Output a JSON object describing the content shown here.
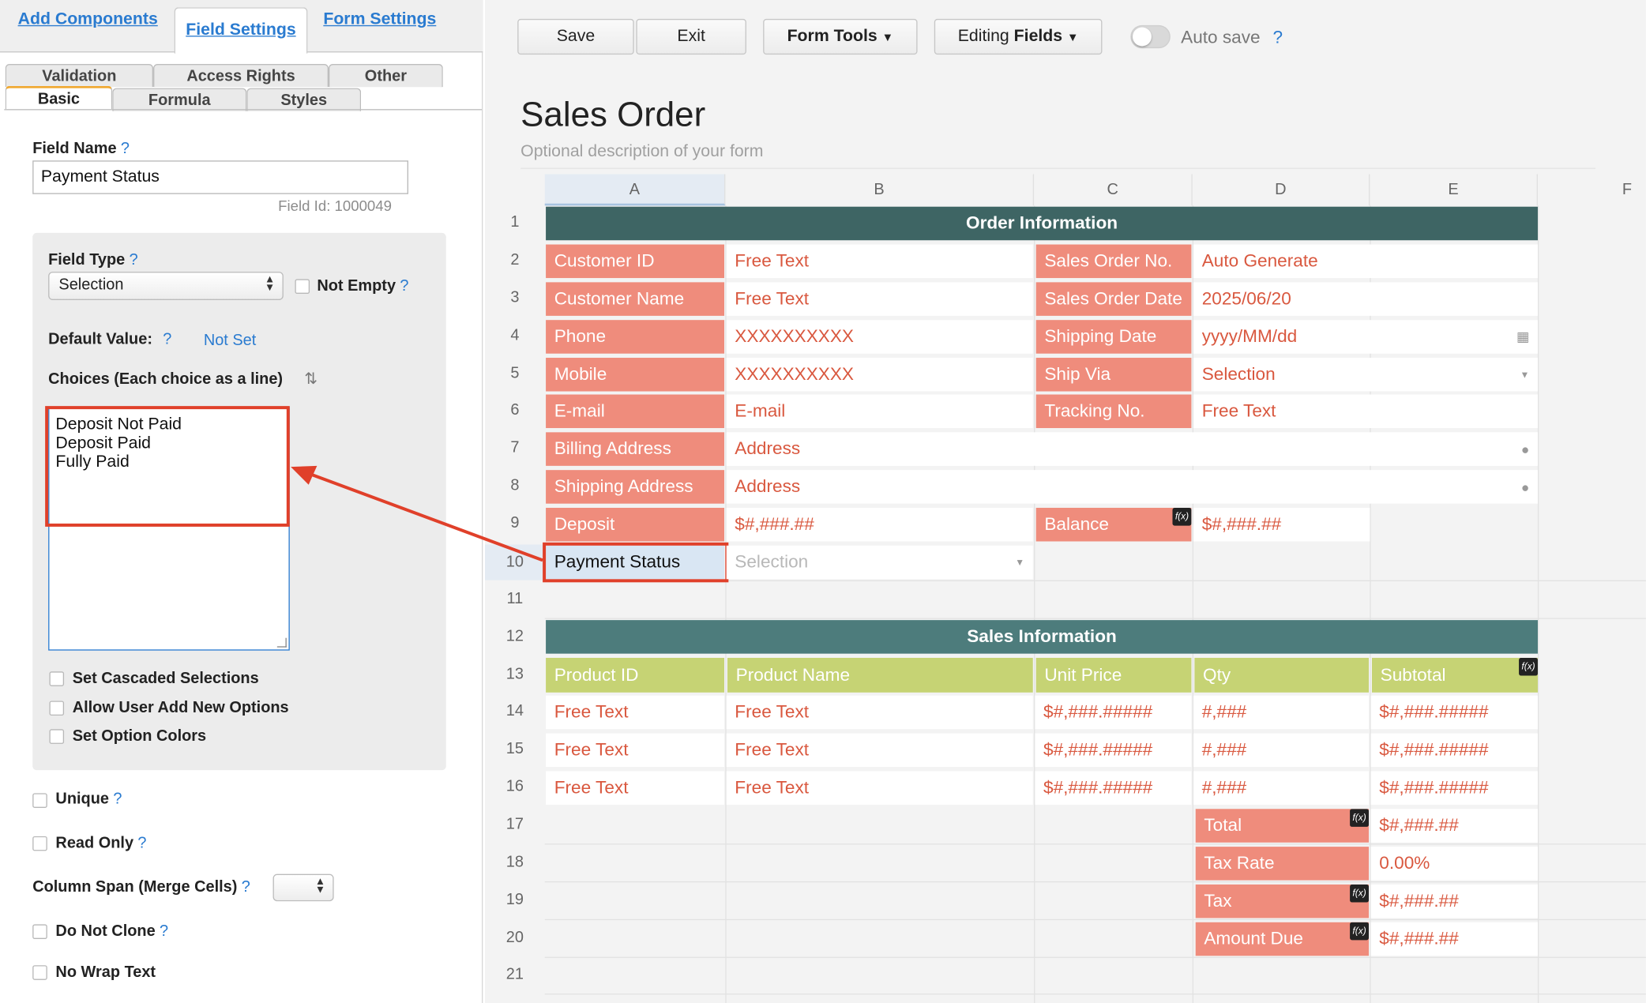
{
  "top_tabs": [
    "Add Components",
    "Field Settings",
    "Form Settings"
  ],
  "sub_tabs_row1": [
    "Validation",
    "Access Rights",
    "Other"
  ],
  "sub_tabs_row2": [
    "Basic",
    "Formula",
    "Styles"
  ],
  "field_name": {
    "label": "Field Name",
    "help": "?",
    "value": "Payment Status",
    "field_id": "Field Id: 1000049"
  },
  "field_type": {
    "label": "Field Type",
    "help": "?",
    "value": "Selection",
    "not_empty": "Not Empty",
    "not_empty_help": "?"
  },
  "default_value": {
    "label": "Default Value:",
    "help": "?",
    "value": "Not Set"
  },
  "choices": {
    "label": "Choices (Each choice as a line)",
    "items": [
      "Deposit Not Paid",
      "Deposit Paid",
      "Fully Paid"
    ]
  },
  "options": [
    "Set Cascaded Selections",
    "Allow User Add New Options",
    "Set Option Colors"
  ],
  "extra_options": {
    "unique": "Unique",
    "read_only": "Read Only",
    "column_span": "Column Span (Merge Cells)",
    "do_not_clone": "Do Not Clone",
    "no_wrap": "No Wrap Text",
    "help": "?"
  },
  "toolbar": {
    "save": "Save",
    "exit": "Exit",
    "form_tools": "Form Tools",
    "editing_prefix": "Editing",
    "editing_fields": "Fields",
    "auto_save": "Auto save",
    "help": "?",
    "caret": "▼"
  },
  "form": {
    "title": "Sales Order",
    "description": "Optional description of your form"
  },
  "columns": [
    "A",
    "B",
    "C",
    "D",
    "E",
    "F"
  ],
  "rows": [
    "1",
    "2",
    "3",
    "4",
    "5",
    "6",
    "7",
    "8",
    "9",
    "10",
    "11",
    "12",
    "13",
    "14",
    "15",
    "16",
    "17",
    "18",
    "19",
    "20",
    "21"
  ],
  "order_info": {
    "header": "Order Information",
    "left_labels": [
      "Customer ID",
      "Customer Name",
      "Phone",
      "Mobile",
      "E-mail",
      "Billing Address",
      "Shipping Address",
      "Deposit"
    ],
    "left_values": [
      "Free Text",
      "Free Text",
      "XXXXXXXXXX",
      "XXXXXXXXXX",
      "E-mail",
      "Address",
      "Address",
      "$#,###.##"
    ],
    "right_labels": [
      "Sales Order No.",
      "Sales Order Date",
      "Shipping Date",
      "Ship Via",
      "Tracking No.",
      "Balance"
    ],
    "right_values": [
      "Auto Generate",
      "2025/06/20",
      "yyyy/MM/dd",
      "Selection",
      "Free Text",
      "$#,###.##"
    ],
    "payment_status": "Payment Status",
    "payment_placeholder": "Selection"
  },
  "sales_info": {
    "header": "Sales Information",
    "col_labels": [
      "Product ID",
      "Product Name",
      "Unit Price",
      "Qty",
      "Subtotal"
    ],
    "row_values": [
      "Free Text",
      "Free Text",
      "$#,###.#####",
      "#,###",
      "$#,###.#####"
    ],
    "totals_labels": [
      "Total",
      "Tax Rate",
      "Tax",
      "Amount Due"
    ],
    "totals_values": [
      "$#,###.##",
      "0.00%",
      "$#,###.##",
      "$#,###.##"
    ]
  },
  "fx_label": "f(x)",
  "colors": {
    "header_dark": "#3e6564",
    "label_salmon": "#ef8c7c",
    "value_text": "#d9583f",
    "green": "#c6d374",
    "link": "#2a7bd0",
    "highlight_red": "#e0402a"
  }
}
